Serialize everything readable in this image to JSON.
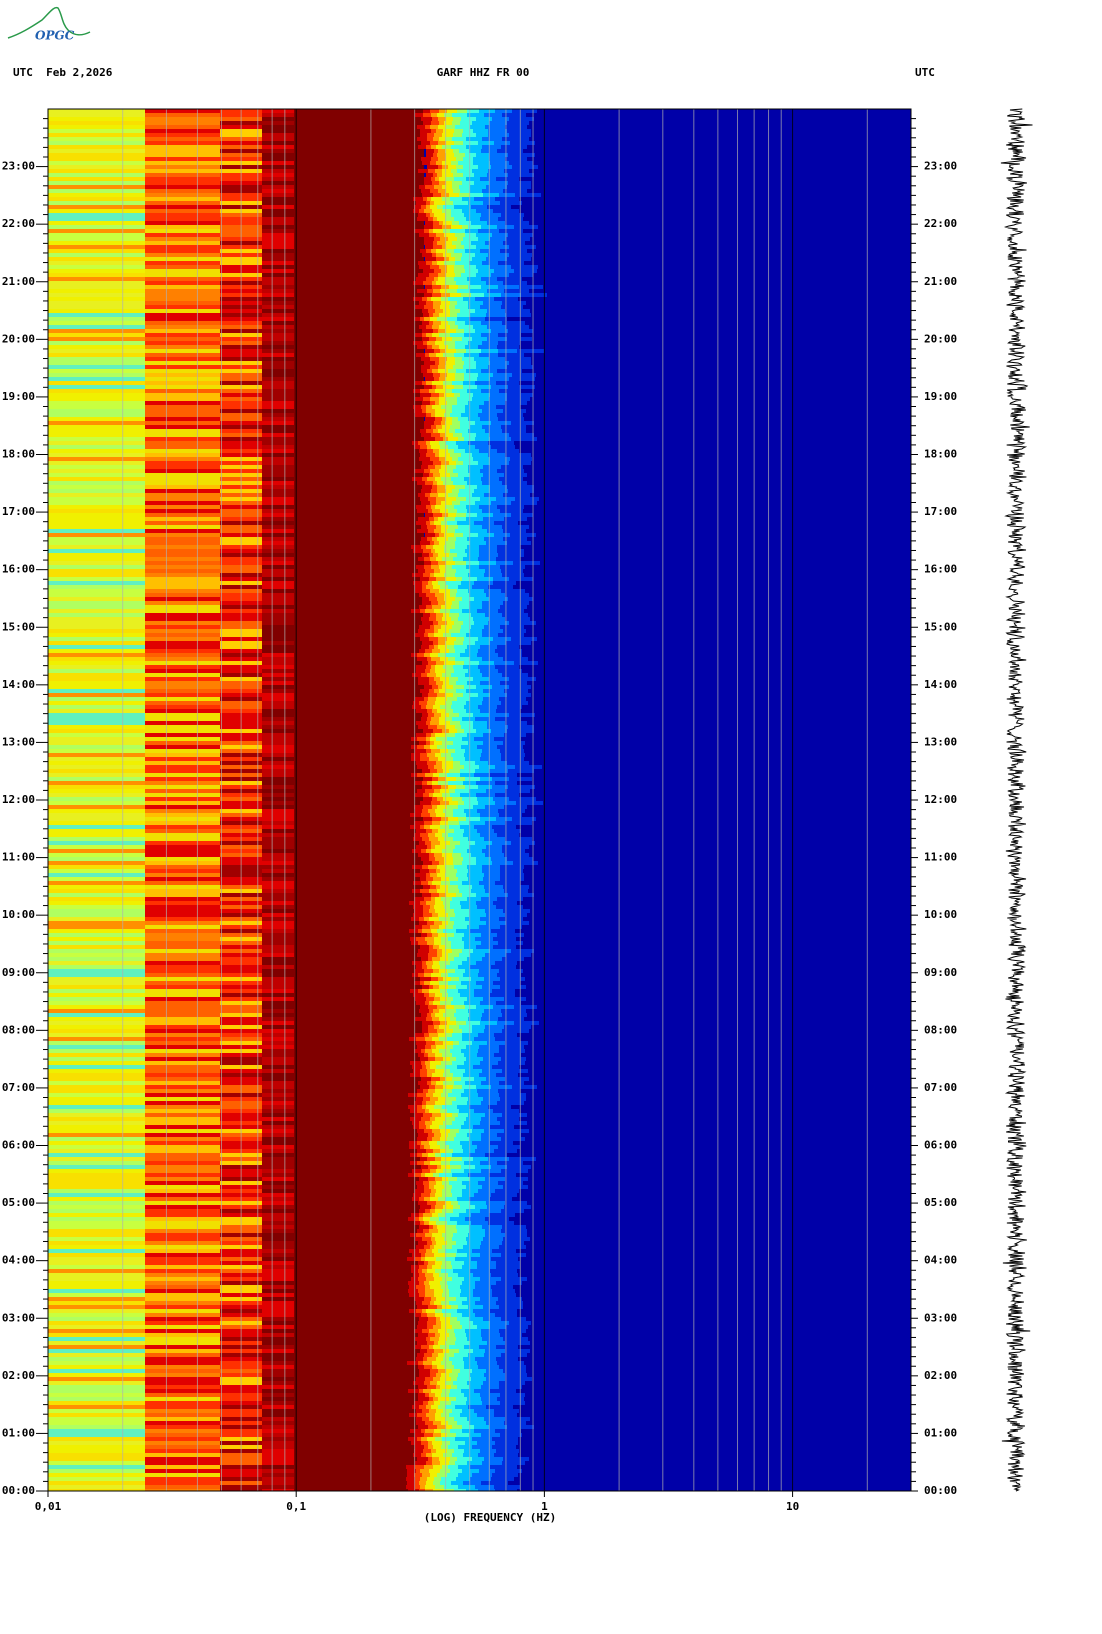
{
  "logo": "OPGC",
  "chart_data": {
    "type": "spectrogram",
    "title": "GARF HHZ FR 00",
    "date_label": "UTC  Feb 2,2026",
    "right_label": "UTC",
    "x_label": "(LOG) FREQUENCY (HZ)",
    "log_x": true,
    "grid": true,
    "xlim": [
      0.01,
      30
    ],
    "xticks": [
      {
        "value": 0.01,
        "label": "0,01"
      },
      {
        "value": 0.1,
        "label": "0,1"
      },
      1,
      10
    ],
    "ylim": [
      0,
      24
    ],
    "yticks": [
      {
        "value": 0,
        "label": "00:00"
      },
      {
        "value": 1,
        "label": "01:00"
      },
      {
        "value": 2,
        "label": "02:00"
      },
      {
        "value": 3,
        "label": "03:00"
      },
      {
        "value": 4,
        "label": "04:00"
      },
      {
        "value": 5,
        "label": "05:00"
      },
      {
        "value": 6,
        "label": "06:00"
      },
      {
        "value": 7,
        "label": "07:00"
      },
      {
        "value": 8,
        "label": "08:00"
      },
      {
        "value": 9,
        "label": "09:00"
      },
      {
        "value": 10,
        "label": "10:00"
      },
      {
        "value": 11,
        "label": "11:00"
      },
      {
        "value": 12,
        "label": "12:00"
      },
      {
        "value": 13,
        "label": "13:00"
      },
      {
        "value": 14,
        "label": "14:00"
      },
      {
        "value": 15,
        "label": "15:00"
      },
      {
        "value": 16,
        "label": "16:00"
      },
      {
        "value": 17,
        "label": "17:00"
      },
      {
        "value": 18,
        "label": "18:00"
      },
      {
        "value": 19,
        "label": "19:00"
      },
      {
        "value": 20,
        "label": "20:00"
      },
      {
        "value": 21,
        "label": "21:00"
      },
      {
        "value": 22,
        "label": "22:00"
      },
      {
        "value": 23,
        "label": "23:00"
      }
    ]
  }
}
